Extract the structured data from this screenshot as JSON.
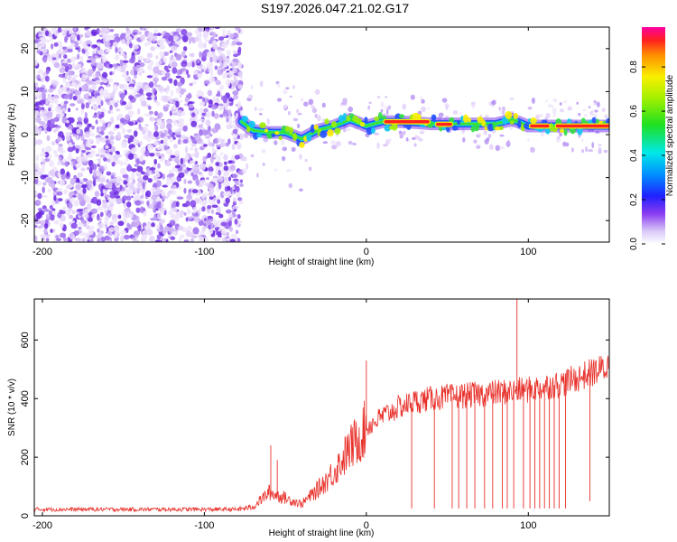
{
  "title": "S197.2026.047.21.02.G17",
  "chart_data": [
    {
      "type": "heatmap",
      "name": "spectrogram",
      "xlabel": "Height of straight line (km)",
      "ylabel": "Frequency (Hz)",
      "xlim": [
        -205,
        150
      ],
      "ylim": [
        -25,
        25
      ],
      "xticks": [
        -200,
        -100,
        0,
        100
      ],
      "yticks": [
        -20,
        -10,
        0,
        10,
        20
      ],
      "noise_region_xlim": [
        -205,
        -77
      ],
      "ridge": {
        "x": [
          -77,
          -70,
          -60,
          -50,
          -40,
          -30,
          -20,
          -10,
          0,
          10,
          20,
          30,
          40,
          50,
          60,
          70,
          80,
          90,
          100,
          110,
          120,
          130,
          140,
          150
        ],
        "y": [
          3,
          1,
          0.5,
          0.5,
          -1,
          1,
          2,
          3.5,
          2,
          3,
          3,
          2.8,
          2.5,
          2.5,
          2.5,
          2.5,
          2.5,
          3.5,
          2,
          2,
          2,
          2,
          2,
          2
        ]
      },
      "colorbar": {
        "label": "Normalized spectral amplitude",
        "ticks": [
          "0.0",
          "0.2",
          "0.4",
          "0.6",
          "0.8"
        ],
        "range": [
          0,
          0.98
        ]
      }
    },
    {
      "type": "line",
      "name": "snr",
      "xlabel": "Height of straight line (km)",
      "ylabel": "SNR (10 * v/v)",
      "xlim": [
        -205,
        150
      ],
      "ylim": [
        0,
        740
      ],
      "xticks": [
        -200,
        -100,
        0,
        100
      ],
      "yticks": [
        0,
        200,
        400,
        600
      ],
      "color": "#e8302a",
      "envelope": {
        "x": [
          -205,
          -80,
          -70,
          -60,
          -50,
          -40,
          -30,
          -20,
          -10,
          0,
          10,
          20,
          30,
          40,
          50,
          60,
          70,
          80,
          90,
          100,
          110,
          120,
          130,
          140,
          150
        ],
        "y": [
          22,
          22,
          30,
          80,
          60,
          40,
          90,
          150,
          230,
          300,
          340,
          370,
          390,
          400,
          405,
          410,
          415,
          420,
          425,
          430,
          440,
          450,
          470,
          490,
          510
        ]
      },
      "spikes": [
        {
          "x": -59,
          "y": 240
        },
        {
          "x": -55,
          "y": 190
        },
        {
          "x": 0,
          "y": 530
        },
        {
          "x": 28,
          "y": 25
        },
        {
          "x": 42,
          "y": 25
        },
        {
          "x": 53,
          "y": 25
        },
        {
          "x": 57,
          "y": 25
        },
        {
          "x": 62,
          "y": 25
        },
        {
          "x": 67,
          "y": 25
        },
        {
          "x": 73,
          "y": 25
        },
        {
          "x": 78,
          "y": 25
        },
        {
          "x": 84,
          "y": 25
        },
        {
          "x": 87,
          "y": 25
        },
        {
          "x": 91,
          "y": 25
        },
        {
          "x": 93,
          "y": 740
        },
        {
          "x": 97,
          "y": 25
        },
        {
          "x": 101,
          "y": 25
        },
        {
          "x": 104,
          "y": 25
        },
        {
          "x": 107,
          "y": 25
        },
        {
          "x": 110,
          "y": 25
        },
        {
          "x": 113,
          "y": 25
        },
        {
          "x": 116,
          "y": 25
        },
        {
          "x": 119,
          "y": 25
        },
        {
          "x": 123,
          "y": 25
        },
        {
          "x": 138,
          "y": 50
        }
      ]
    }
  ]
}
